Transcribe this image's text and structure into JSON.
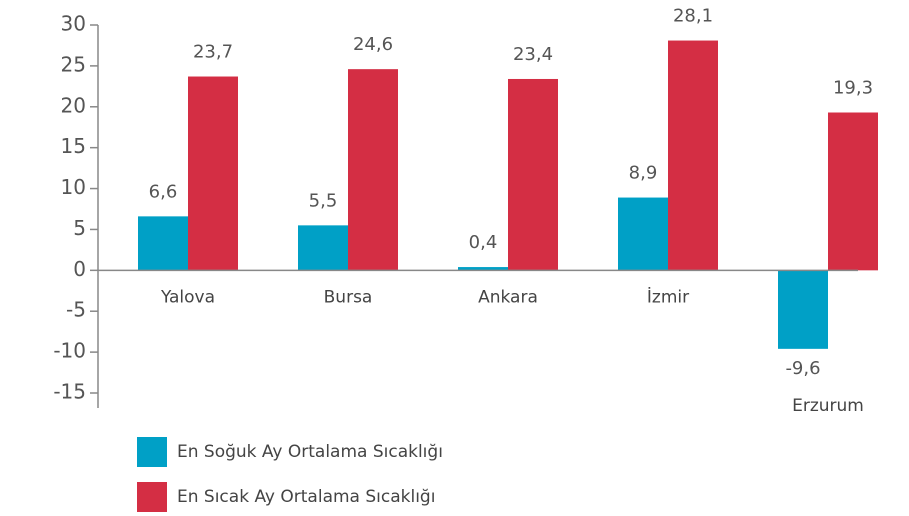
{
  "chart_data": {
    "type": "bar",
    "categories": [
      "Yalova",
      "Bursa",
      "Ankara",
      "İzmir",
      "Erzurum"
    ],
    "series": [
      {
        "name": "En Soğuk Ay Ortalama Sıcaklığı",
        "color": "#00a0c6",
        "values": [
          6.6,
          5.5,
          0.4,
          8.9,
          -9.6
        ],
        "value_labels": [
          "6,6",
          "5,5",
          "0,4",
          "8,9",
          "-9,6"
        ]
      },
      {
        "name": "En Sıcak Ay  Ortalama Sıcaklığı",
        "color": "#d42e44",
        "values": [
          23.7,
          24.6,
          23.4,
          28.1,
          19.3
        ],
        "value_labels": [
          "23,7",
          "24,6",
          "23,4",
          "28,1",
          "19,3"
        ]
      }
    ],
    "ylim": [
      -15,
      30
    ],
    "yticks": [
      -15,
      -10,
      -5,
      0,
      5,
      10,
      15,
      20,
      25,
      30
    ]
  }
}
